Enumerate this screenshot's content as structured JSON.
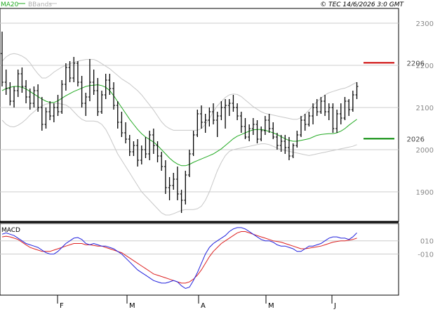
{
  "legend": {
    "ma_label": "MA20",
    "bb_label": "BBands",
    "ma_color": "#22aa22",
    "bb_color": "#c0c0c0"
  },
  "header": {
    "copyright": "© TEC 14/6/2026 3:0 GMT"
  },
  "macd_panel": {
    "label": "MACD"
  },
  "colors": {
    "bar": "#000000",
    "macd_line": "#2222dd",
    "signal_line": "#dd2222",
    "resistance": "#cc0000",
    "support": "#008800",
    "grid": "#cccccc"
  },
  "chart_data": [
    {
      "type": "ohlc",
      "x_ticks": [
        "F",
        "M",
        "A",
        "M",
        "J"
      ],
      "y_ticks": [
        "1900",
        "2000",
        "2100",
        "2200",
        "2300"
      ],
      "ylim": [
        1830,
        2335
      ],
      "levels": [
        {
          "name": "resistance",
          "value": 2206,
          "label": "2206"
        },
        {
          "name": "support",
          "value": 2026,
          "label": "2026"
        }
      ],
      "series": {
        "ohlc": [
          [
            2228,
            2280,
            2150,
            2160
          ],
          [
            2160,
            2190,
            2130,
            2145
          ],
          [
            2145,
            2160,
            2105,
            2115
          ],
          [
            2115,
            2150,
            2100,
            2140
          ],
          [
            2140,
            2190,
            2125,
            2180
          ],
          [
            2180,
            2195,
            2135,
            2150
          ],
          [
            2150,
            2165,
            2110,
            2125
          ],
          [
            2125,
            2145,
            2095,
            2110
          ],
          [
            2110,
            2150,
            2100,
            2140
          ],
          [
            2140,
            2155,
            2090,
            2100
          ],
          [
            2100,
            2125,
            2045,
            2060
          ],
          [
            2060,
            2100,
            2050,
            2090
          ],
          [
            2090,
            2115,
            2070,
            2080
          ],
          [
            2080,
            2110,
            2065,
            2100
          ],
          [
            2100,
            2130,
            2080,
            2090
          ],
          [
            2090,
            2165,
            2085,
            2155
          ],
          [
            2155,
            2205,
            2140,
            2195
          ],
          [
            2195,
            2210,
            2160,
            2170
          ],
          [
            2170,
            2220,
            2160,
            2205
          ],
          [
            2205,
            2210,
            2150,
            2160
          ],
          [
            2160,
            2175,
            2100,
            2110
          ],
          [
            2110,
            2135,
            2080,
            2125
          ],
          [
            2125,
            2215,
            2115,
            2160
          ],
          [
            2160,
            2190,
            2130,
            2140
          ],
          [
            2140,
            2170,
            2080,
            2090
          ],
          [
            2090,
            2140,
            2085,
            2130
          ],
          [
            2130,
            2180,
            2120,
            2165
          ],
          [
            2165,
            2180,
            2130,
            2145
          ],
          [
            2145,
            2160,
            2095,
            2105
          ],
          [
            2105,
            2115,
            2050,
            2065
          ],
          [
            2065,
            2090,
            2030,
            2040
          ],
          [
            2040,
            2065,
            2015,
            2025
          ],
          [
            2025,
            2035,
            1985,
            1995
          ],
          [
            1995,
            2020,
            1985,
            2010
          ],
          [
            2010,
            2025,
            1960,
            1975
          ],
          [
            1975,
            2010,
            1965,
            2000
          ],
          [
            2000,
            2030,
            1980,
            1990
          ],
          [
            1990,
            2045,
            1975,
            2035
          ],
          [
            2035,
            2050,
            1990,
            2010
          ],
          [
            2010,
            2020,
            1970,
            1985
          ],
          [
            1985,
            1995,
            1950,
            1960
          ],
          [
            1960,
            1975,
            1895,
            1910
          ],
          [
            1910,
            1935,
            1880,
            1915
          ],
          [
            1915,
            1945,
            1905,
            1930
          ],
          [
            1930,
            1960,
            1880,
            1895
          ],
          [
            1895,
            1905,
            1850,
            1880
          ],
          [
            1880,
            1950,
            1870,
            1940
          ],
          [
            1940,
            2000,
            1935,
            1990
          ],
          [
            1990,
            2045,
            1985,
            2035
          ],
          [
            2035,
            2095,
            2030,
            2085
          ],
          [
            2085,
            2105,
            2050,
            2065
          ],
          [
            2065,
            2085,
            2040,
            2070
          ],
          [
            2070,
            2100,
            2055,
            2090
          ],
          [
            2090,
            2110,
            2060,
            2070
          ],
          [
            2070,
            2090,
            2030,
            2080
          ],
          [
            2080,
            2115,
            2070,
            2100
          ],
          [
            2100,
            2120,
            2050,
            2105
          ],
          [
            2105,
            2120,
            2080,
            2110
          ],
          [
            2110,
            2130,
            2090,
            2100
          ],
          [
            2100,
            2110,
            2070,
            2080
          ],
          [
            2080,
            2090,
            2040,
            2055
          ],
          [
            2055,
            2075,
            2025,
            2030
          ],
          [
            2030,
            2060,
            2020,
            2050
          ],
          [
            2050,
            2075,
            2035,
            2060
          ],
          [
            2060,
            2070,
            2015,
            2025
          ],
          [
            2025,
            2055,
            2020,
            2045
          ],
          [
            2045,
            2080,
            2035,
            2070
          ],
          [
            2070,
            2085,
            2040,
            2050
          ],
          [
            2050,
            2065,
            2025,
            2030
          ],
          [
            2030,
            2040,
            2000,
            2010
          ],
          [
            2010,
            2035,
            1995,
            2020
          ],
          [
            2020,
            2035,
            1990,
            2005
          ],
          [
            2005,
            2030,
            1975,
            1985
          ],
          [
            1985,
            2015,
            1980,
            2010
          ],
          [
            2010,
            2045,
            2005,
            2035
          ],
          [
            2035,
            2080,
            2030,
            2070
          ],
          [
            2070,
            2085,
            2045,
            2060
          ],
          [
            2060,
            2090,
            2055,
            2080
          ],
          [
            2080,
            2110,
            2060,
            2100
          ],
          [
            2100,
            2120,
            2080,
            2090
          ],
          [
            2090,
            2125,
            2085,
            2115
          ],
          [
            2115,
            2130,
            2080,
            2090
          ],
          [
            2090,
            2110,
            2070,
            2100
          ],
          [
            2100,
            2110,
            2040,
            2050
          ],
          [
            2050,
            2095,
            2040,
            2085
          ],
          [
            2085,
            2110,
            2060,
            2075
          ],
          [
            2075,
            2125,
            2070,
            2115
          ],
          [
            2115,
            2120,
            2080,
            2095
          ],
          [
            2095,
            2140,
            2090,
            2130
          ],
          [
            2130,
            2160,
            2120,
            2150
          ]
        ],
        "ma20": [
          2140,
          2145,
          2148,
          2150,
          2150,
          2148,
          2144,
          2138,
          2132,
          2126,
          2120,
          2115,
          2112,
          2112,
          2116,
          2122,
          2128,
          2133,
          2138,
          2142,
          2146,
          2150,
          2152,
          2153,
          2154,
          2152,
          2148,
          2140,
          2128,
          2114,
          2100,
          2086,
          2072,
          2060,
          2048,
          2038,
          2030,
          2024,
          2018,
          2010,
          2000,
          1990,
          1980,
          1972,
          1966,
          1962,
          1962,
          1965,
          1970,
          1974,
          1978,
          1982,
          1986,
          1990,
          1996,
          2002,
          2010,
          2018,
          2026,
          2032,
          2036,
          2040,
          2044,
          2047,
          2048,
          2048,
          2046,
          2043,
          2040,
          2036,
          2031,
          2026,
          2022,
          2020,
          2020,
          2022,
          2024,
          2026,
          2030,
          2034,
          2036,
          2037,
          2038,
          2038,
          2040,
          2044,
          2050,
          2058,
          2065,
          2072
        ],
        "bb_upper": [
          2210,
          2220,
          2226,
          2228,
          2226,
          2222,
          2216,
          2206,
          2192,
          2180,
          2170,
          2170,
          2176,
          2184,
          2190,
          2196,
          2200,
          2204,
          2207,
          2210,
          2212,
          2214,
          2214,
          2214,
          2210,
          2204,
          2198,
          2192,
          2184,
          2176,
          2168,
          2162,
          2156,
          2148,
          2140,
          2130,
          2118,
          2106,
          2094,
          2080,
          2066,
          2056,
          2050,
          2046,
          2046,
          2046,
          2046,
          2046,
          2046,
          2046,
          2050,
          2060,
          2074,
          2090,
          2104,
          2114,
          2124,
          2130,
          2132,
          2131,
          2126,
          2118,
          2110,
          2102,
          2096,
          2090,
          2086,
          2084,
          2082,
          2080,
          2078,
          2076,
          2074,
          2072,
          2072,
          2076,
          2084,
          2094,
          2104,
          2114,
          2122,
          2130,
          2135,
          2138,
          2141,
          2144,
          2146,
          2150,
          2155,
          2160
        ],
        "bb_lower": [
          2070,
          2060,
          2055,
          2054,
          2058,
          2064,
          2072,
          2082,
          2090,
          2098,
          2104,
          2108,
          2110,
          2110,
          2110,
          2108,
          2106,
          2100,
          2090,
          2080,
          2072,
          2068,
          2068,
          2068,
          2066,
          2060,
          2048,
          2030,
          2010,
          1990,
          1975,
          1960,
          1945,
          1930,
          1915,
          1900,
          1890,
          1880,
          1870,
          1860,
          1850,
          1845,
          1845,
          1848,
          1852,
          1856,
          1858,
          1858,
          1858,
          1860,
          1866,
          1880,
          1900,
          1925,
          1950,
          1970,
          1986,
          1996,
          2000,
          2002,
          2004,
          2006,
          2008,
          2010,
          2012,
          2014,
          2014,
          2012,
          2008,
          2004,
          2000,
          1998,
          1996,
          1994,
          1992,
          1990,
          1988,
          1986,
          1988,
          1990,
          1992,
          1994,
          1996,
          1998,
          2000,
          2002,
          2004,
          2006,
          2008,
          2012
        ]
      }
    },
    {
      "type": "line",
      "title": "MACD",
      "y_ticks": [
        "010",
        "-010"
      ],
      "ylim": [
        -70,
        32
      ],
      "series": [
        {
          "name": "MACD",
          "values": [
            20,
            22,
            20,
            18,
            14,
            10,
            6,
            4,
            2,
            0,
            -4,
            -8,
            -10,
            -10,
            -6,
            0,
            6,
            10,
            14,
            15,
            12,
            6,
            4,
            6,
            4,
            2,
            2,
            0,
            -2,
            -6,
            -10,
            -16,
            -22,
            -28,
            -34,
            -38,
            -42,
            -46,
            -50,
            -52,
            -54,
            -54,
            -52,
            -50,
            -52,
            -58,
            -62,
            -60,
            -50,
            -38,
            -24,
            -10,
            0,
            6,
            10,
            14,
            18,
            24,
            28,
            30,
            30,
            28,
            24,
            20,
            16,
            12,
            10,
            10,
            8,
            4,
            2,
            2,
            0,
            -2,
            -6,
            -6,
            -2,
            2,
            2,
            4,
            6,
            10,
            14,
            16,
            16,
            14,
            14,
            12,
            16,
            22
          ]
        },
        {
          "name": "Signal",
          "values": [
            16,
            17,
            16,
            14,
            12,
            8,
            4,
            0,
            -2,
            -4,
            -6,
            -6,
            -6,
            -4,
            -2,
            0,
            2,
            4,
            6,
            6,
            6,
            4,
            4,
            3,
            2,
            2,
            0,
            -2,
            -4,
            -6,
            -8,
            -12,
            -16,
            -20,
            -24,
            -28,
            -32,
            -36,
            -40,
            -42,
            -44,
            -46,
            -48,
            -50,
            -52,
            -54,
            -54,
            -52,
            -48,
            -42,
            -34,
            -24,
            -14,
            -6,
            0,
            6,
            10,
            14,
            18,
            22,
            24,
            24,
            22,
            20,
            18,
            16,
            14,
            12,
            10,
            9,
            8,
            6,
            4,
            2,
            0,
            -2,
            -2,
            -1,
            0,
            1,
            2,
            4,
            6,
            8,
            9,
            10,
            10,
            11,
            12,
            14
          ]
        }
      ]
    }
  ]
}
